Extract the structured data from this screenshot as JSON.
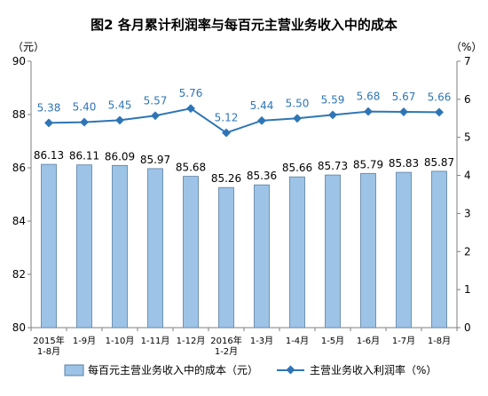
{
  "chart_data": {
    "type": "bar+line",
    "title": "图2  各月累计利润率与每百元主营业务收入中的成本",
    "left_unit": "（元）",
    "right_unit": "（%）",
    "categories": [
      [
        "2015年",
        "1-8月"
      ],
      [
        "1-9月"
      ],
      [
        "1-10月"
      ],
      [
        "1-11月"
      ],
      [
        "1-12月"
      ],
      [
        "2016年",
        "1-2月"
      ],
      [
        "1-3月"
      ],
      [
        "1-4月"
      ],
      [
        "1-5月"
      ],
      [
        "1-6月"
      ],
      [
        "1-7月"
      ],
      [
        "1-8月"
      ]
    ],
    "bar_series": {
      "name": "每百元主营业务收入中的成本（元）",
      "values": [
        86.13,
        86.11,
        86.09,
        85.97,
        85.68,
        85.26,
        85.36,
        85.66,
        85.73,
        85.79,
        85.83,
        85.87
      ],
      "labels": [
        "86.13",
        "86.11",
        "86.09",
        "85.97",
        "85.68",
        "85.26",
        "85.36",
        "85.66",
        "85.73",
        "85.79",
        "85.83",
        "85.87"
      ]
    },
    "line_series": {
      "name": "主营业务收入利润率（%）",
      "values": [
        5.38,
        5.4,
        5.45,
        5.57,
        5.76,
        5.12,
        5.44,
        5.5,
        5.59,
        5.68,
        5.67,
        5.66
      ],
      "labels": [
        "5.38",
        "5.40",
        "5.45",
        "5.57",
        "5.76",
        "5.12",
        "5.44",
        "5.50",
        "5.59",
        "5.68",
        "5.67",
        "5.66"
      ]
    },
    "y_left": {
      "min": 80,
      "max": 90,
      "ticks": [
        80,
        82,
        84,
        86,
        88,
        90
      ]
    },
    "y_right": {
      "min": 0,
      "max": 7,
      "ticks": [
        0,
        1,
        2,
        3,
        4,
        5,
        6,
        7
      ]
    },
    "grid": false,
    "legend_position": "bottom",
    "colors": {
      "bar_fill": "#9DC3E6",
      "bar_stroke": "#5B7FA3",
      "line": "#2E75B6",
      "axis": "#7f7f7f"
    }
  }
}
